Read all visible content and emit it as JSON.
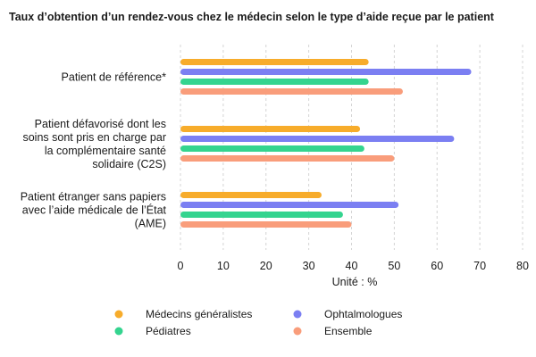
{
  "chart_data": {
    "type": "bar",
    "orientation": "horizontal",
    "title": "Taux d’obtention d’un rendez-vous chez le médecin selon le type d’aide reçue par le patient",
    "xlabel": "Unité : %",
    "ylabel": "",
    "xlim": [
      0,
      80
    ],
    "xticks": [
      0,
      10,
      20,
      30,
      40,
      50,
      60,
      70,
      80
    ],
    "grid": true,
    "legend_position": "bottom",
    "categories": [
      [
        "Patient de référence*"
      ],
      [
        "Patient défavorisé dont les",
        "soins sont pris en charge par",
        "la complémentaire santé",
        "solidaire (C2S)"
      ],
      [
        "Patient étranger sans papiers",
        "avec l’aide médicale de l’État",
        "(AME)"
      ]
    ],
    "series": [
      {
        "name": "Médecins généralistes",
        "color": "#F7AC2B",
        "values": [
          44,
          42,
          33
        ]
      },
      {
        "name": "Ophtalmologues",
        "color": "#7B7FF2",
        "values": [
          68,
          64,
          51
        ]
      },
      {
        "name": "Pédiatres",
        "color": "#34D48F",
        "values": [
          44,
          43,
          38
        ]
      },
      {
        "name": "Ensemble",
        "color": "#F99D7B",
        "values": [
          52,
          50,
          40
        ]
      }
    ]
  }
}
